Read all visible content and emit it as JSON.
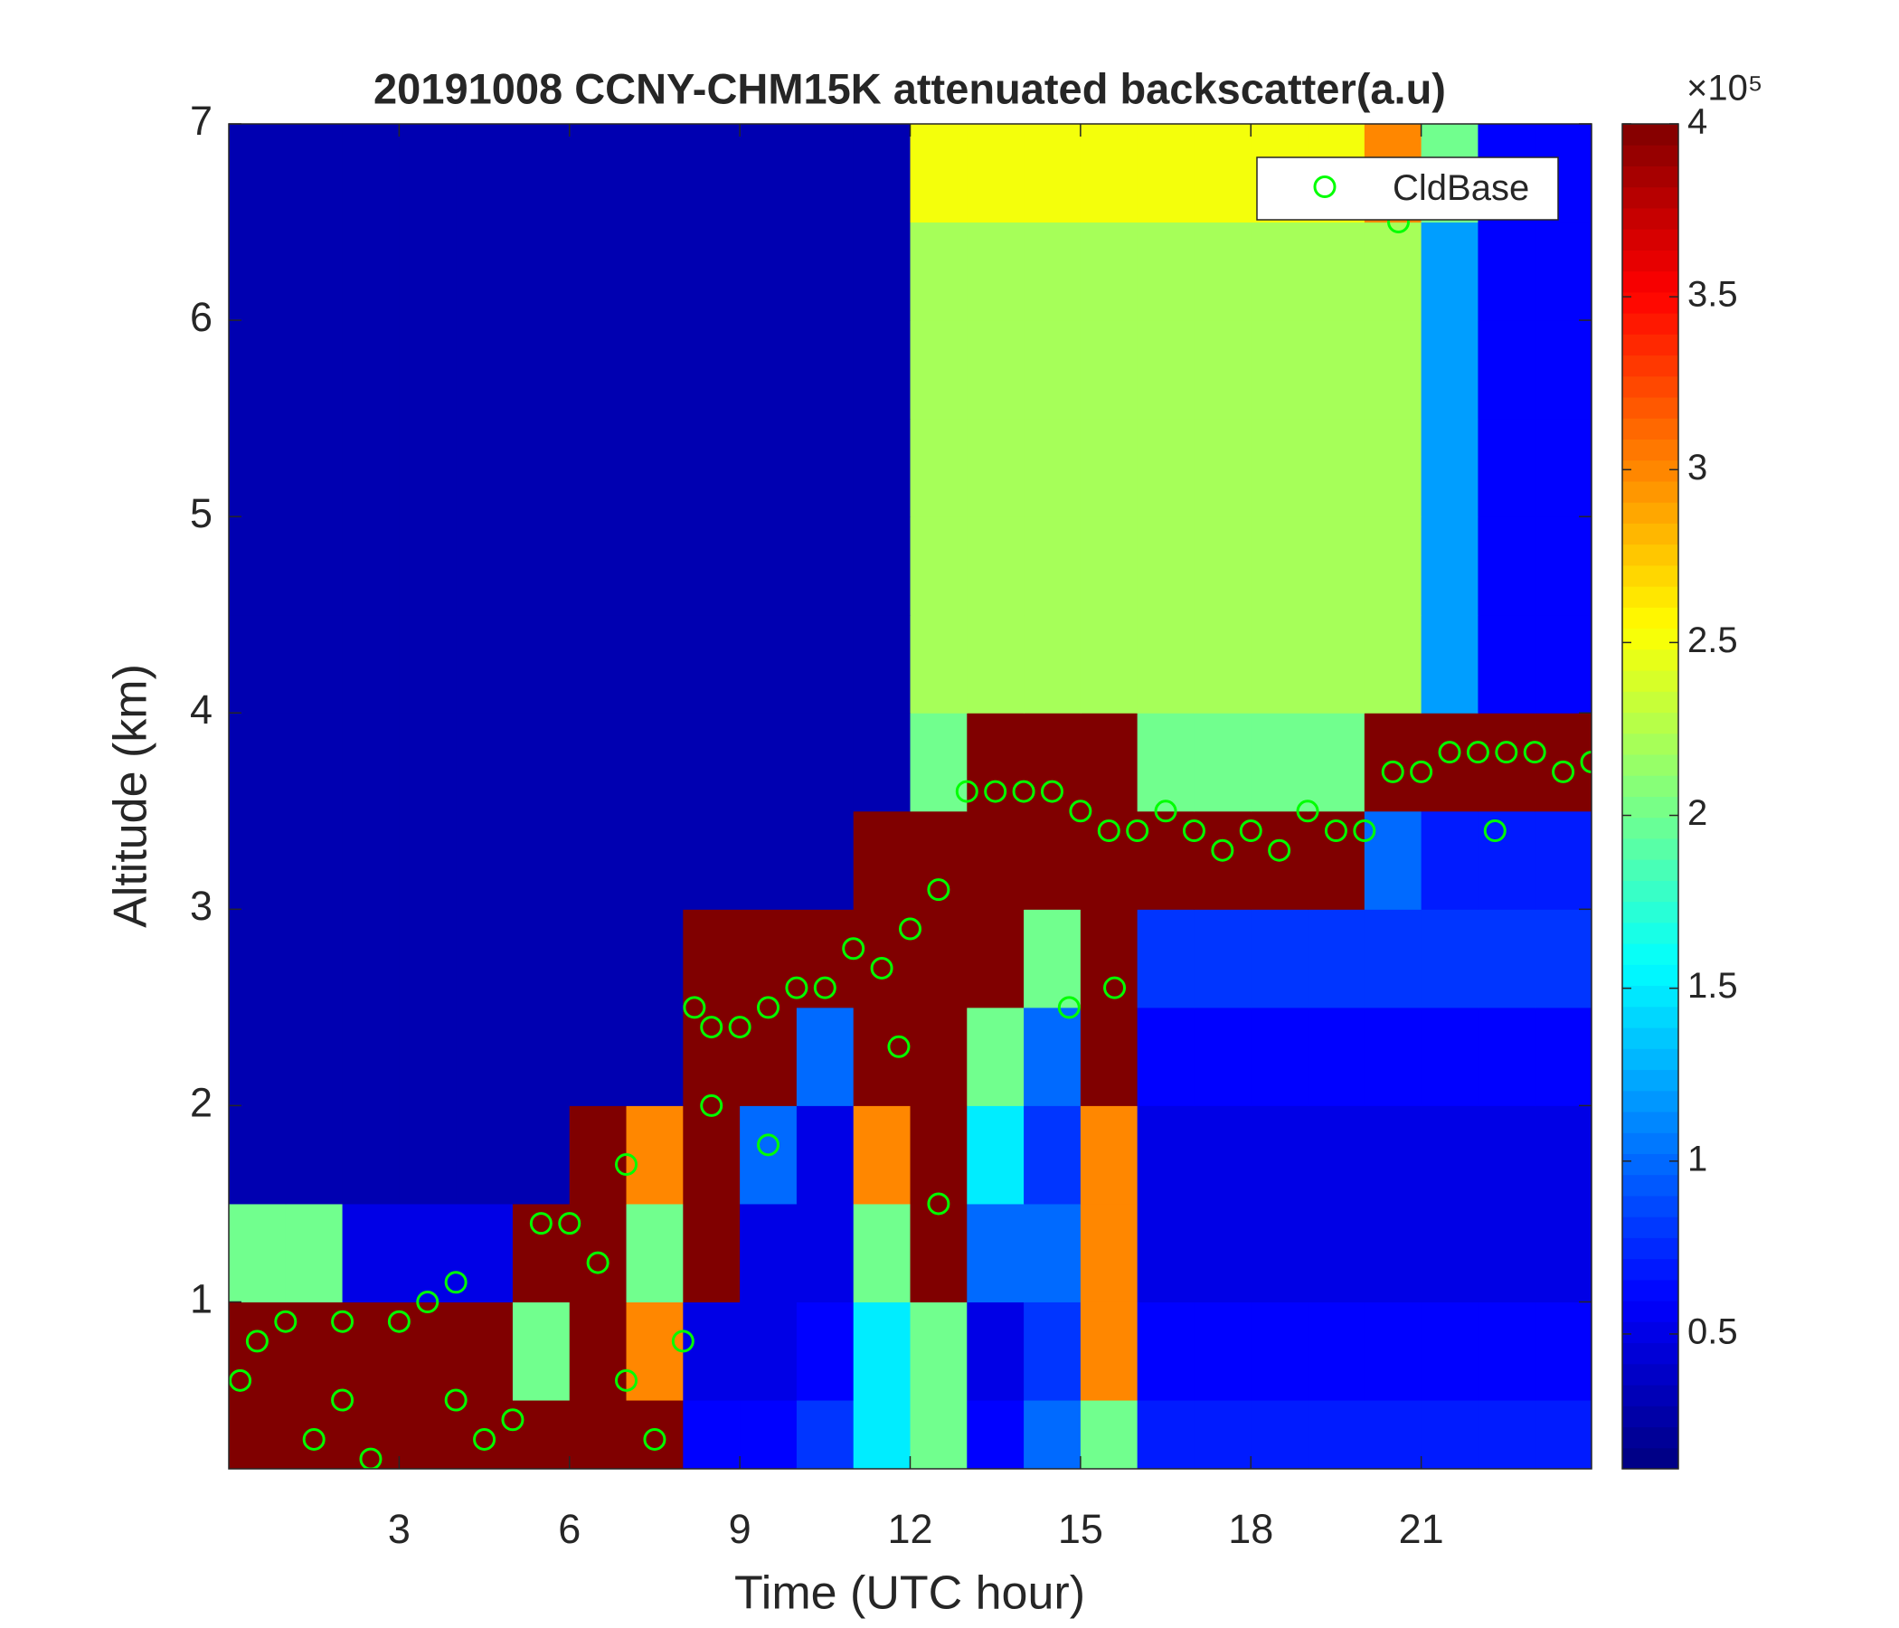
{
  "chart_data": {
    "type": "heatmap",
    "title": "20191008 CCNY-CHM15K attenuated backscatter(a.u)",
    "x_label": "Time (UTC hour)",
    "y_label": "Altitude (km)",
    "x": [
      0.5,
      1.5,
      2.5,
      3.5,
      4.5,
      5.5,
      6.5,
      7.5,
      8.5,
      9.5,
      10.5,
      11.5,
      12.5,
      13.5,
      14.5,
      15.5,
      16.5,
      17.5,
      18.5,
      19.5,
      20.5,
      21.5,
      22.5,
      23.5
    ],
    "y": [
      0.25,
      0.75,
      1.25,
      1.75,
      2.25,
      2.75,
      3.25,
      3.75,
      4.25,
      4.75,
      5.25,
      5.75,
      6.25,
      6.75
    ],
    "z": [
      [
        4,
        4,
        4,
        4,
        4,
        4,
        4,
        4,
        0.6,
        0.6,
        0.8,
        1.5,
        2,
        0.6,
        1,
        2,
        0.7,
        0.7,
        0.7,
        0.7,
        0.7,
        0.7,
        0.7,
        0.7
      ],
      [
        4,
        4,
        4,
        4,
        4,
        2,
        4,
        3,
        0.5,
        0.5,
        0.6,
        1.5,
        2,
        0.5,
        0.8,
        3,
        0.6,
        0.6,
        0.6,
        0.6,
        0.6,
        0.6,
        0.6,
        0.6
      ],
      [
        2,
        2,
        0.5,
        0.5,
        0.5,
        4,
        4,
        2,
        4,
        0.5,
        0.5,
        2,
        4,
        1,
        1,
        3,
        0.5,
        0.5,
        0.5,
        0.5,
        0.5,
        0.5,
        0.5,
        0.5
      ],
      [
        0.3,
        0.3,
        0.3,
        0.3,
        0.3,
        0.3,
        4,
        3,
        4,
        1,
        0.5,
        3,
        4,
        1.5,
        0.8,
        3,
        0.5,
        0.5,
        0.5,
        0.5,
        0.5,
        0.5,
        0.5,
        0.5
      ],
      [
        0.3,
        0.3,
        0.3,
        0.3,
        0.3,
        0.3,
        0.3,
        0.3,
        4,
        4,
        1,
        4,
        4,
        2,
        1,
        4,
        0.6,
        0.6,
        0.6,
        0.6,
        0.6,
        0.6,
        0.6,
        0.6
      ],
      [
        0.3,
        0.3,
        0.3,
        0.3,
        0.3,
        0.3,
        0.3,
        0.3,
        4,
        4,
        4,
        4,
        4,
        4,
        2,
        4,
        0.8,
        0.8,
        0.8,
        0.8,
        0.8,
        0.8,
        0.8,
        0.8
      ],
      [
        0.3,
        0.3,
        0.3,
        0.3,
        0.3,
        0.3,
        0.3,
        0.3,
        0.3,
        0.3,
        0.3,
        4,
        4,
        4,
        4,
        4,
        4,
        4,
        4,
        4,
        1,
        0.7,
        0.7,
        0.7
      ],
      [
        0.3,
        0.3,
        0.3,
        0.3,
        0.3,
        0.3,
        0.3,
        0.3,
        0.3,
        0.3,
        0.3,
        0.3,
        2,
        4,
        4,
        4,
        2,
        2,
        2,
        2,
        4,
        4,
        4,
        4
      ],
      [
        0.3,
        0.3,
        0.3,
        0.3,
        0.3,
        0.3,
        0.3,
        0.3,
        0.3,
        0.3,
        0.3,
        0.3,
        2.2,
        2.2,
        2.2,
        2.2,
        2.2,
        2.2,
        2.2,
        2.2,
        2.2,
        1.2,
        0.6,
        0.6
      ],
      [
        0.3,
        0.3,
        0.3,
        0.3,
        0.3,
        0.3,
        0.3,
        0.3,
        0.3,
        0.3,
        0.3,
        0.3,
        2.2,
        2.2,
        2.2,
        2.2,
        2.2,
        2.2,
        2.2,
        2.2,
        2.2,
        1.2,
        0.6,
        0.6
      ],
      [
        0.3,
        0.3,
        0.3,
        0.3,
        0.3,
        0.3,
        0.3,
        0.3,
        0.3,
        0.3,
        0.3,
        0.3,
        2.2,
        2.2,
        2.2,
        2.2,
        2.2,
        2.2,
        2.2,
        2.2,
        2.2,
        1.2,
        0.6,
        0.6
      ],
      [
        0.3,
        0.3,
        0.3,
        0.3,
        0.3,
        0.3,
        0.3,
        0.3,
        0.3,
        0.3,
        0.3,
        0.3,
        2.2,
        2.2,
        2.2,
        2.2,
        2.2,
        2.2,
        2.2,
        2.2,
        2.2,
        1.2,
        0.6,
        0.6
      ],
      [
        0.3,
        0.3,
        0.3,
        0.3,
        0.3,
        0.3,
        0.3,
        0.3,
        0.3,
        0.3,
        0.3,
        0.3,
        2.2,
        2.2,
        2.2,
        2.2,
        2.2,
        2.2,
        2.2,
        2.2,
        2.2,
        1.2,
        0.6,
        0.6
      ],
      [
        0.3,
        0.3,
        0.3,
        0.3,
        0.3,
        0.3,
        0.3,
        0.3,
        0.3,
        0.3,
        0.3,
        0.3,
        2.5,
        2.5,
        2.5,
        2.5,
        2.5,
        2.5,
        2.5,
        2.5,
        3,
        2,
        0.6,
        0.6
      ]
    ],
    "colormap": "jet",
    "clim": [
      0.11,
      4
    ],
    "cticks": [
      0.5,
      1,
      1.5,
      2,
      2.5,
      3,
      3.5,
      4
    ],
    "colorbar_exponent": "×10⁵",
    "xlim": [
      0,
      24
    ],
    "ylim": [
      0.15,
      7
    ],
    "xticks": [
      3,
      6,
      9,
      12,
      15,
      18,
      21
    ],
    "yticks": [
      1,
      2,
      3,
      4,
      5,
      6,
      7
    ],
    "overlay": {
      "type": "scatter",
      "name": "CldBase",
      "color": "#00ff00",
      "x": [
        0.2,
        0.5,
        1,
        1.5,
        2,
        2.5,
        3,
        3.5,
        4,
        4.5,
        5,
        5.5,
        6,
        6.5,
        7,
        7.5,
        8,
        8.2,
        8.5,
        9,
        9.5,
        10,
        10.5,
        11,
        11.5,
        12,
        12.5,
        13,
        13.5,
        14,
        14.5,
        15,
        15.5,
        16,
        16.5,
        17,
        17.5,
        18,
        18.5,
        19,
        19.5,
        20,
        20.5,
        20.6,
        21,
        21.5,
        22,
        22.3,
        22.5,
        23,
        23.5,
        24,
        14.8,
        15.6,
        12.5,
        11.8,
        9.5,
        8.5,
        7,
        4,
        2
      ],
      "y": [
        0.6,
        0.8,
        0.9,
        0.3,
        0.9,
        0.2,
        0.9,
        1.0,
        1.1,
        0.3,
        0.4,
        1.4,
        1.4,
        1.2,
        0.6,
        0.3,
        0.8,
        2.5,
        2.4,
        2.4,
        2.5,
        2.6,
        2.6,
        2.8,
        2.7,
        2.9,
        3.1,
        3.6,
        3.6,
        3.6,
        3.6,
        3.5,
        3.4,
        3.4,
        3.5,
        3.4,
        3.3,
        3.4,
        3.3,
        3.5,
        3.4,
        3.4,
        3.7,
        6.5,
        3.7,
        3.8,
        3.8,
        3.4,
        3.8,
        3.8,
        3.7,
        3.75,
        2.5,
        2.6,
        1.5,
        2.3,
        1.8,
        2.0,
        1.7,
        0.5,
        0.5
      ]
    },
    "legend": "northeast"
  }
}
